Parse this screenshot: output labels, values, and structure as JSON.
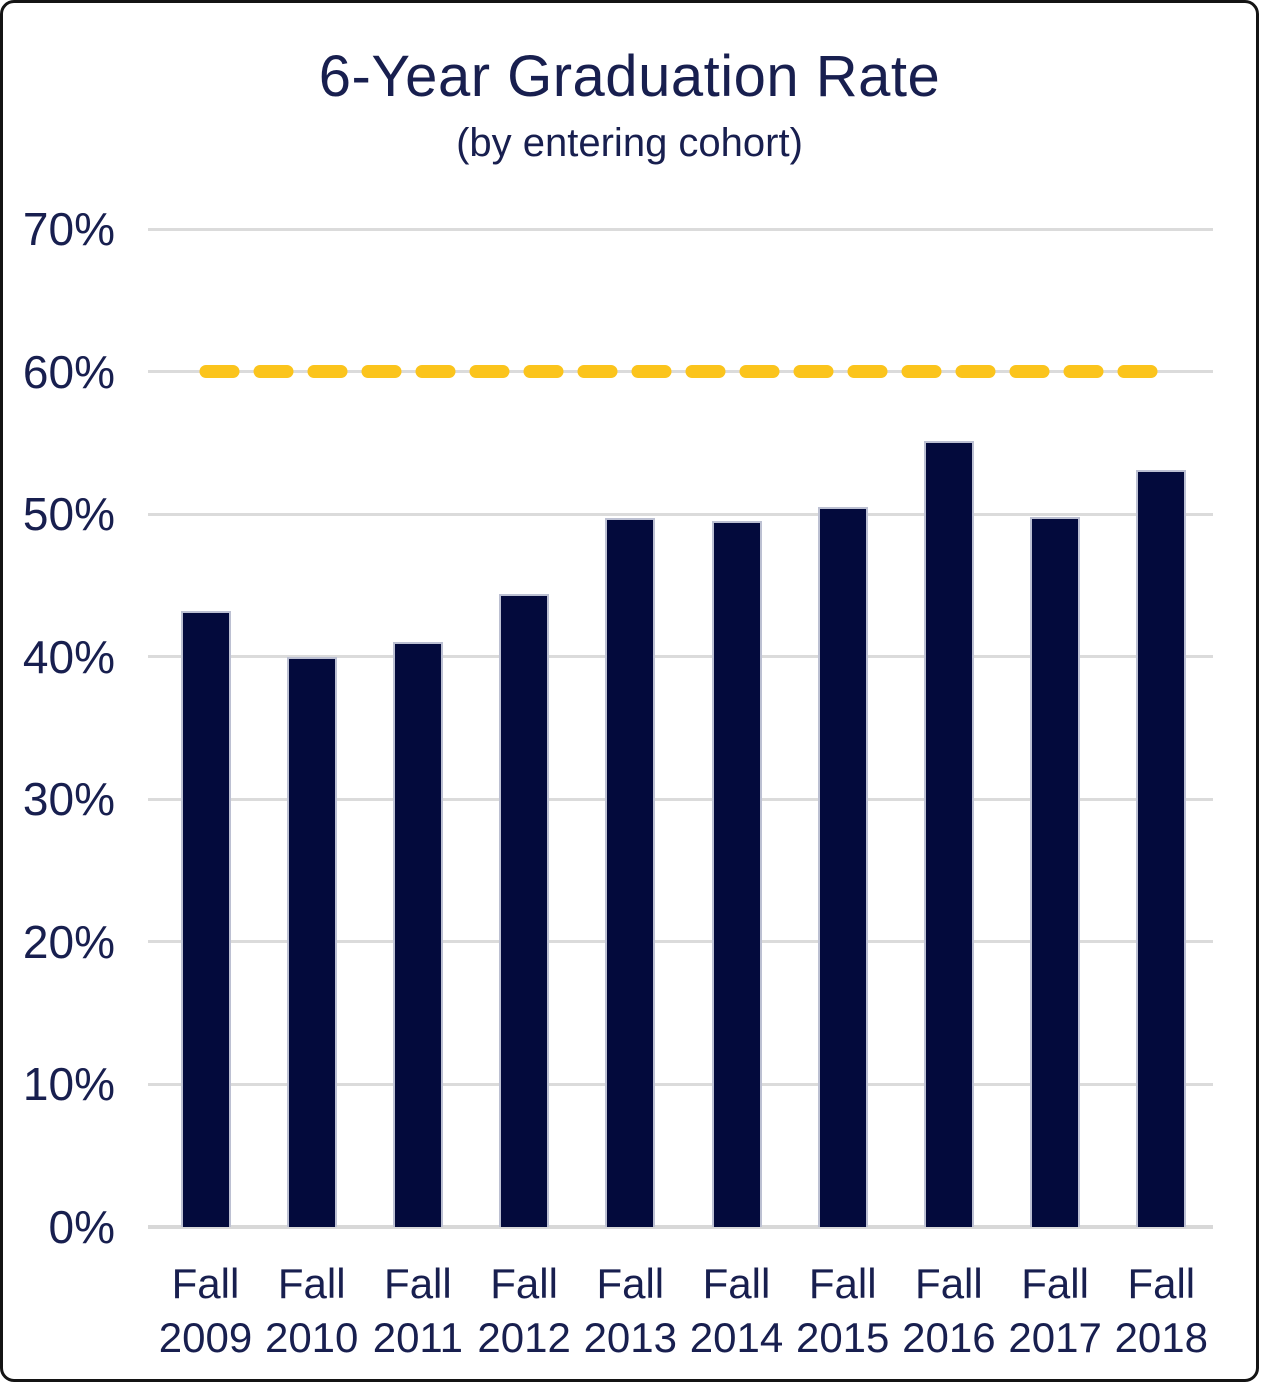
{
  "title": "6-Year Graduation Rate",
  "subtitle": "(by entering cohort)",
  "colors": {
    "bar": "#030A3C",
    "bar_edge": "#BCC0D2",
    "text": "#181F4F",
    "gridline": "#DBDBDB",
    "axis_line": "#D8D8D8",
    "target_line": "#FBC41C",
    "card_border": "#141414",
    "background": "#FFFFFF"
  },
  "chart_data": {
    "type": "bar",
    "title": "6-Year Graduation Rate",
    "subtitle": "(by entering cohort)",
    "categories": [
      "Fall 2009",
      "Fall 2010",
      "Fall 2011",
      "Fall 2012",
      "Fall 2013",
      "Fall 2014",
      "Fall 2015",
      "Fall 2016",
      "Fall 2017",
      "Fall 2018"
    ],
    "values": [
      43.2,
      40.0,
      41.0,
      44.4,
      49.7,
      49.5,
      50.5,
      55.1,
      49.8,
      53.1
    ],
    "xlabel": "",
    "ylabel": "",
    "ylim": [
      0,
      70
    ],
    "yticks": [
      0,
      10,
      20,
      30,
      40,
      50,
      60,
      70
    ],
    "ytick_format": "percent",
    "grid": true,
    "legend": false,
    "target_line": {
      "value": 60,
      "style": "dashed",
      "color": "#FBC41C"
    }
  }
}
